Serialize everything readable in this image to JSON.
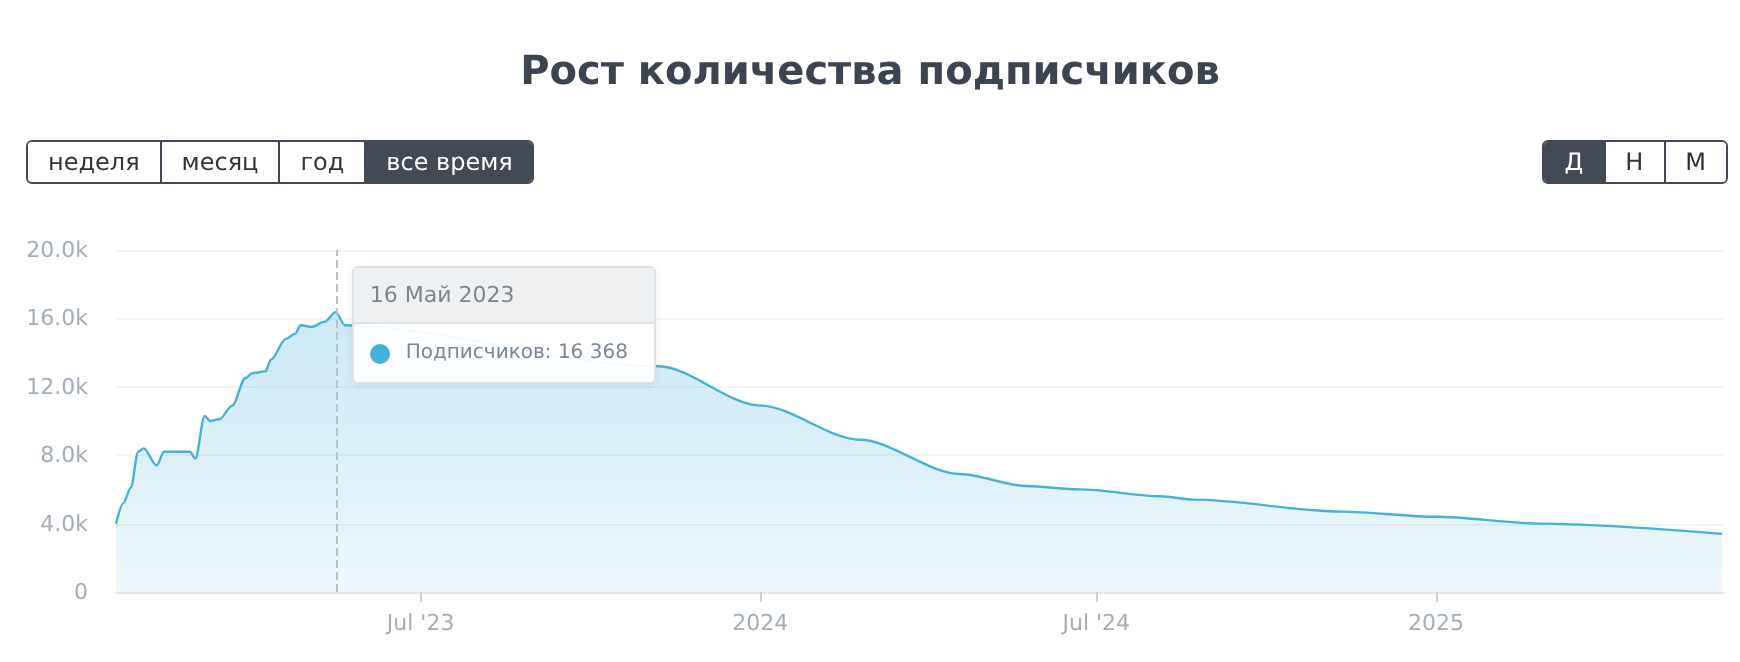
{
  "chart_data": {
    "type": "area",
    "title": "Рост количества подписчиков",
    "x": [
      "2023-01-17",
      "2023-01-21",
      "2023-01-25",
      "2023-01-29",
      "2023-02-01",
      "2023-02-08",
      "2023-02-12",
      "2023-02-26",
      "2023-03-01",
      "2023-03-06",
      "2023-03-09",
      "2023-03-14",
      "2023-03-21",
      "2023-03-28",
      "2023-04-01",
      "2023-04-08",
      "2023-04-11",
      "2023-04-19",
      "2023-04-24",
      "2023-04-27",
      "2023-05-03",
      "2023-05-10",
      "2023-05-16",
      "2023-05-21",
      "2023-11-07",
      "2024-01-01",
      "2024-02-24",
      "2024-04-18",
      "2024-05-24",
      "2024-06-22",
      "2024-08-05",
      "2024-08-23",
      "2024-11-11",
      "2025-01-01",
      "2025-02-26",
      "2025-06-05"
    ],
    "series": [
      {
        "color": "#45b0da",
        "values": [
          4000,
          5200,
          6100,
          8200,
          8400,
          7400,
          8200,
          8200,
          7800,
          10300,
          10000,
          10100,
          10900,
          12500,
          12800,
          12900,
          13600,
          14800,
          15100,
          15600,
          15500,
          15800,
          16368,
          15600,
          13200,
          10900,
          8900,
          6900,
          6200,
          6000,
          5600,
          5400,
          4700,
          4400,
          4000,
          3400
        ]
      }
    ],
    "xlim": [
      "2023-01-17",
      "2025-06-06"
    ],
    "xticks": [
      {
        "value": "2023-07-01",
        "label": "Jul '23"
      },
      {
        "value": "2024-01-01",
        "label": "2024"
      },
      {
        "value": "2024-07-01",
        "label": "Jul '24"
      },
      {
        "value": "2025-01-01",
        "label": "2025"
      }
    ],
    "ylim": [
      0,
      20000
    ],
    "yticks": [
      0,
      {
        "value": 4000,
        "label": "4.0k"
      },
      {
        "value": 8000,
        "label": "8.0k"
      },
      {
        "value": 12000,
        "label": "12.0k"
      },
      {
        "value": 16000,
        "label": "16.0k"
      },
      {
        "value": 20000,
        "label": "20.0k"
      }
    ],
    "ref_lines": [
      {
        "axis": "x",
        "value": "2023-05-16",
        "color": "#b8c0c8",
        "line_style": "dashed"
      }
    ],
    "grid": "y",
    "marker": "none",
    "line_style": "solid",
    "annotations": [
      "неделя",
      "месяц",
      "год",
      "все время",
      "Д",
      "Н",
      "М",
      {
        "text": "16 Май 2023",
        "x": "2023-05-16",
        "y": 16368
      },
      "Подписчиков: 16 368"
    ]
  }
}
